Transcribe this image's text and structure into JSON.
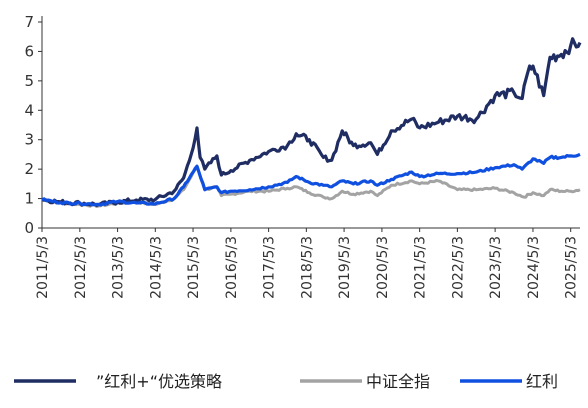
{
  "chart_data": {
    "type": "line",
    "title": "",
    "xlabel": "",
    "ylabel": "",
    "ylim": [
      0,
      7
    ],
    "yticks": [
      0,
      1,
      2,
      3,
      4,
      5,
      6,
      7
    ],
    "grid": false,
    "legend_position": "bottom",
    "x_tick_labels": [
      "2011/5/3",
      "2012/5/3",
      "2013/5/3",
      "2014/5/3",
      "2015/5/3",
      "2016/5/3",
      "2017/5/3",
      "2018/5/3",
      "2019/5/3",
      "2020/5/3",
      "2021/5/3",
      "2022/5/3",
      "2023/5/3",
      "2024/5/3",
      "2025/5/3"
    ],
    "x_range": [
      "2011/5/3",
      "2025/8/1"
    ],
    "series": [
      {
        "name": "”红利+“优选策略",
        "color": "#1f2d63",
        "points": [
          [
            "2011/5/3",
            0.97
          ],
          [
            "2011/11/1",
            0.88
          ],
          [
            "2012/5/3",
            0.85
          ],
          [
            "2012/11/1",
            0.8
          ],
          [
            "2013/5/3",
            0.88
          ],
          [
            "2013/11/1",
            0.95
          ],
          [
            "2014/5/3",
            0.97
          ],
          [
            "2014/11/1",
            1.25
          ],
          [
            "2015/2/1",
            1.7
          ],
          [
            "2015/4/15",
            2.5
          ],
          [
            "2015/6/10",
            3.4
          ],
          [
            "2015/7/10",
            2.4
          ],
          [
            "2015/8/25",
            2.0
          ],
          [
            "2015/12/20",
            2.45
          ],
          [
            "2016/2/1",
            1.8
          ],
          [
            "2016/5/3",
            1.95
          ],
          [
            "2016/11/1",
            2.3
          ],
          [
            "2017/5/3",
            2.6
          ],
          [
            "2017/11/1",
            2.8
          ],
          [
            "2018/1/25",
            3.2
          ],
          [
            "2018/6/1",
            3.0
          ],
          [
            "2018/10/15",
            2.4
          ],
          [
            "2019/1/3",
            2.3
          ],
          [
            "2019/4/15",
            3.3
          ],
          [
            "2019/8/1",
            2.8
          ],
          [
            "2020/1/15",
            2.9
          ],
          [
            "2020/3/20",
            2.5
          ],
          [
            "2020/8/1",
            3.3
          ],
          [
            "2021/2/15",
            3.7
          ],
          [
            "2021/5/3",
            3.4
          ],
          [
            "2021/11/1",
            3.6
          ],
          [
            "2022/5/3",
            3.8
          ],
          [
            "2022/11/1",
            3.7
          ],
          [
            "2023/5/3",
            4.5
          ],
          [
            "2023/11/1",
            4.6
          ],
          [
            "2024/1/20",
            4.4
          ],
          [
            "2024/3/15",
            5.3
          ],
          [
            "2024/5/3",
            5.5
          ],
          [
            "2024/8/15",
            4.5
          ],
          [
            "2024/10/15",
            5.8
          ],
          [
            "2025/2/1",
            5.9
          ],
          [
            "2025/5/3",
            6.2
          ],
          [
            "2025/8/1",
            6.3
          ]
        ]
      },
      {
        "name": "中证全指",
        "color": "#a3a3a3",
        "points": [
          [
            "2011/5/3",
            0.97
          ],
          [
            "2011/11/1",
            0.85
          ],
          [
            "2012/5/3",
            0.8
          ],
          [
            "2012/11/1",
            0.75
          ],
          [
            "2013/5/3",
            0.85
          ],
          [
            "2013/11/1",
            0.88
          ],
          [
            "2014/5/3",
            0.8
          ],
          [
            "2014/11/1",
            1.0
          ],
          [
            "2015/2/1",
            1.3
          ],
          [
            "2015/6/10",
            2.1
          ],
          [
            "2015/8/25",
            1.3
          ],
          [
            "2015/12/20",
            1.4
          ],
          [
            "2016/2/1",
            1.1
          ],
          [
            "2016/5/3",
            1.15
          ],
          [
            "2016/11/1",
            1.25
          ],
          [
            "2017/5/3",
            1.25
          ],
          [
            "2017/11/1",
            1.35
          ],
          [
            "2018/1/25",
            1.4
          ],
          [
            "2018/6/1",
            1.2
          ],
          [
            "2018/10/15",
            1.05
          ],
          [
            "2019/1/3",
            1.0
          ],
          [
            "2019/4/15",
            1.25
          ],
          [
            "2019/8/1",
            1.15
          ],
          [
            "2020/1/15",
            1.25
          ],
          [
            "2020/3/20",
            1.1
          ],
          [
            "2020/8/1",
            1.45
          ],
          [
            "2021/2/15",
            1.6
          ],
          [
            "2021/5/3",
            1.5
          ],
          [
            "2021/11/1",
            1.6
          ],
          [
            "2022/5/3",
            1.3
          ],
          [
            "2022/11/1",
            1.3
          ],
          [
            "2023/5/3",
            1.35
          ],
          [
            "2023/11/1",
            1.2
          ],
          [
            "2024/2/5",
            1.05
          ],
          [
            "2024/5/3",
            1.2
          ],
          [
            "2024/8/15",
            1.1
          ],
          [
            "2024/10/15",
            1.3
          ],
          [
            "2025/2/1",
            1.25
          ],
          [
            "2025/5/3",
            1.25
          ],
          [
            "2025/8/1",
            1.3
          ]
        ]
      },
      {
        "name": "红利",
        "color": "#1050e0",
        "points": [
          [
            "2011/5/3",
            0.97
          ],
          [
            "2011/11/1",
            0.86
          ],
          [
            "2012/5/3",
            0.84
          ],
          [
            "2012/11/1",
            0.8
          ],
          [
            "2013/5/3",
            0.9
          ],
          [
            "2013/11/1",
            0.85
          ],
          [
            "2014/5/3",
            0.82
          ],
          [
            "2014/11/1",
            1.0
          ],
          [
            "2015/2/1",
            1.4
          ],
          [
            "2015/6/10",
            2.1
          ],
          [
            "2015/8/25",
            1.3
          ],
          [
            "2015/12/20",
            1.4
          ],
          [
            "2016/2/1",
            1.2
          ],
          [
            "2016/5/3",
            1.25
          ],
          [
            "2016/11/1",
            1.3
          ],
          [
            "2017/5/3",
            1.4
          ],
          [
            "2017/11/1",
            1.55
          ],
          [
            "2018/1/25",
            1.75
          ],
          [
            "2018/6/1",
            1.55
          ],
          [
            "2018/10/15",
            1.45
          ],
          [
            "2019/1/3",
            1.4
          ],
          [
            "2019/4/15",
            1.6
          ],
          [
            "2019/8/1",
            1.5
          ],
          [
            "2020/1/15",
            1.6
          ],
          [
            "2020/3/20",
            1.45
          ],
          [
            "2020/8/1",
            1.65
          ],
          [
            "2021/2/15",
            1.9
          ],
          [
            "2021/5/3",
            1.75
          ],
          [
            "2021/11/1",
            1.85
          ],
          [
            "2022/5/3",
            1.85
          ],
          [
            "2022/11/1",
            1.9
          ],
          [
            "2023/5/3",
            2.05
          ],
          [
            "2023/11/1",
            2.15
          ],
          [
            "2024/1/20",
            2.0
          ],
          [
            "2024/5/3",
            2.35
          ],
          [
            "2024/8/15",
            2.2
          ],
          [
            "2024/10/15",
            2.4
          ],
          [
            "2025/2/1",
            2.4
          ],
          [
            "2025/5/3",
            2.45
          ],
          [
            "2025/8/1",
            2.5
          ]
        ]
      }
    ]
  }
}
